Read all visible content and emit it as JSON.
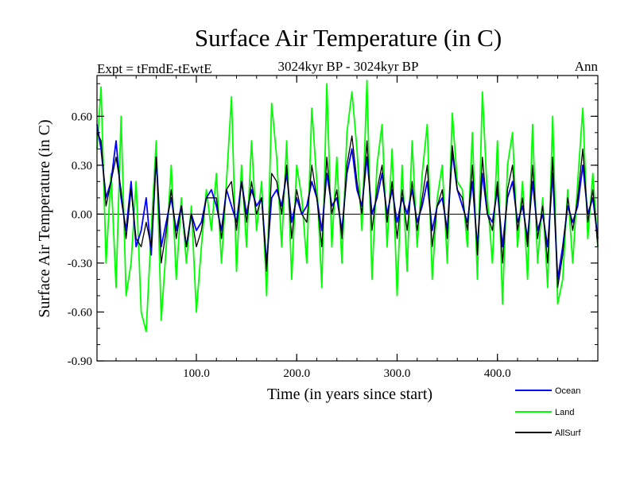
{
  "chart_data": {
    "type": "line",
    "title": "Surface Air Temperature (in C)",
    "subtitle": "3024kyr BP - 3024kyr BP",
    "left_label": "Expt = tFmdE-tEwtE",
    "right_label": "Ann",
    "xlabel": "Time (in years since start)",
    "ylabel": "Surface Air Temperature (in C)",
    "xlim": [
      1,
      500
    ],
    "ylim": [
      -0.9,
      0.85
    ],
    "x_ticks": [
      100,
      200,
      300,
      400
    ],
    "x_tick_labels": [
      "100.0",
      "200.0",
      "300.0",
      "400.0"
    ],
    "y_ticks": [
      -0.9,
      -0.6,
      -0.3,
      0.0,
      0.3,
      0.6
    ],
    "y_tick_labels": [
      "-0.90",
      "-0.60",
      "-0.30",
      "0.00",
      "0.30",
      "0.60"
    ],
    "zero_line": 0.0,
    "colors": {
      "ocean": "#0000ff",
      "land": "#00ff00",
      "allsurf": "#000000",
      "axis": "#000000"
    },
    "legend": {
      "placement": "bottom-right",
      "entries": [
        {
          "name": "Ocean",
          "color": "#0000ff"
        },
        {
          "name": "Land",
          "color": "#00ff00"
        },
        {
          "name": "AllSurf",
          "color": "#000000"
        }
      ]
    },
    "series": [
      {
        "name": "Land",
        "color": "#00ff00",
        "x": [
          1,
          5,
          10,
          15,
          20,
          25,
          30,
          35,
          40,
          45,
          50,
          55,
          60,
          65,
          70,
          75,
          80,
          85,
          90,
          95,
          100,
          105,
          110,
          115,
          120,
          125,
          130,
          135,
          140,
          145,
          150,
          155,
          160,
          165,
          170,
          175,
          180,
          185,
          190,
          195,
          200,
          205,
          210,
          215,
          220,
          225,
          230,
          235,
          240,
          245,
          250,
          255,
          260,
          265,
          270,
          275,
          280,
          285,
          290,
          295,
          300,
          305,
          310,
          315,
          320,
          325,
          330,
          335,
          340,
          345,
          350,
          355,
          360,
          365,
          370,
          375,
          380,
          385,
          390,
          395,
          400,
          405,
          410,
          415,
          420,
          425,
          430,
          435,
          440,
          445,
          450,
          455,
          460,
          465,
          470,
          475,
          480,
          485,
          490,
          495,
          500
        ],
        "values": [
          0.4,
          0.78,
          -0.3,
          0.25,
          -0.45,
          0.6,
          -0.5,
          -0.3,
          0.2,
          -0.6,
          -0.72,
          -0.1,
          0.45,
          -0.65,
          -0.2,
          0.3,
          -0.4,
          0.1,
          -0.3,
          0.05,
          -0.6,
          -0.2,
          0.15,
          -0.1,
          0.25,
          -0.3,
          0.2,
          0.72,
          -0.35,
          0.3,
          -0.2,
          0.45,
          -0.1,
          0.2,
          -0.5,
          0.68,
          0.35,
          -0.2,
          0.45,
          -0.4,
          0.3,
          0.1,
          -0.3,
          0.65,
          0.2,
          -0.45,
          0.8,
          -0.2,
          0.35,
          -0.3,
          0.5,
          0.75,
          0.4,
          -0.1,
          0.82,
          -0.4,
          0.3,
          0.55,
          -0.2,
          0.4,
          -0.5,
          0.3,
          -0.35,
          0.45,
          -0.2,
          0.25,
          0.55,
          -0.4,
          0.1,
          0.3,
          -0.3,
          0.62,
          0.2,
          0.15,
          -0.2,
          0.5,
          -0.4,
          0.75,
          0.1,
          -0.3,
          0.45,
          -0.55,
          0.3,
          0.5,
          -0.2,
          0.2,
          -0.4,
          0.55,
          -0.3,
          0.1,
          -0.45,
          0.6,
          -0.55,
          -0.4,
          0.15,
          -0.3,
          0.2,
          0.65,
          -0.15,
          0.25,
          -0.2
        ]
      },
      {
        "name": "Ocean",
        "color": "#0000ff",
        "x": [
          1,
          5,
          10,
          15,
          20,
          25,
          30,
          35,
          40,
          45,
          50,
          55,
          60,
          65,
          70,
          75,
          80,
          85,
          90,
          95,
          100,
          105,
          110,
          115,
          120,
          125,
          130,
          135,
          140,
          145,
          150,
          155,
          160,
          165,
          170,
          175,
          180,
          185,
          190,
          195,
          200,
          205,
          210,
          215,
          220,
          225,
          230,
          235,
          240,
          245,
          250,
          255,
          260,
          265,
          270,
          275,
          280,
          285,
          290,
          295,
          300,
          305,
          310,
          315,
          320,
          325,
          330,
          335,
          340,
          345,
          350,
          355,
          360,
          365,
          370,
          375,
          380,
          385,
          390,
          395,
          400,
          405,
          410,
          415,
          420,
          425,
          430,
          435,
          440,
          445,
          450,
          455,
          460,
          465,
          470,
          475,
          480,
          485,
          490,
          495,
          500
        ],
        "values": [
          0.55,
          0.4,
          0.1,
          0.2,
          0.45,
          0.1,
          -0.1,
          0.2,
          -0.2,
          -0.1,
          0.1,
          -0.25,
          0.35,
          -0.2,
          -0.05,
          0.1,
          -0.1,
          0.05,
          -0.2,
          0.0,
          -0.1,
          -0.05,
          0.1,
          0.15,
          0.05,
          -0.1,
          0.15,
          0.05,
          -0.05,
          0.2,
          0.0,
          0.15,
          0.05,
          0.1,
          -0.3,
          0.1,
          0.15,
          0.05,
          0.25,
          -0.05,
          0.1,
          0.0,
          0.05,
          0.2,
          0.1,
          -0.1,
          0.25,
          0.05,
          0.1,
          -0.1,
          0.25,
          0.4,
          0.15,
          0.05,
          0.35,
          0.0,
          0.1,
          0.25,
          0.0,
          0.15,
          -0.05,
          0.1,
          0.0,
          0.15,
          -0.05,
          0.05,
          0.2,
          -0.1,
          0.05,
          0.1,
          -0.1,
          0.38,
          0.15,
          0.05,
          -0.05,
          0.2,
          -0.2,
          0.25,
          0.0,
          -0.05,
          0.15,
          -0.2,
          0.1,
          0.2,
          -0.05,
          0.05,
          -0.15,
          0.2,
          -0.1,
          0.0,
          -0.2,
          0.25,
          -0.4,
          -0.2,
          0.05,
          -0.05,
          0.05,
          0.3,
          0.0,
          0.1,
          -0.15
        ]
      },
      {
        "name": "AllSurf",
        "color": "#000000",
        "x": [
          1,
          5,
          10,
          15,
          20,
          25,
          30,
          35,
          40,
          45,
          50,
          55,
          60,
          65,
          70,
          75,
          80,
          85,
          90,
          95,
          100,
          105,
          110,
          115,
          120,
          125,
          130,
          135,
          140,
          145,
          150,
          155,
          160,
          165,
          170,
          175,
          180,
          185,
          190,
          195,
          200,
          205,
          210,
          215,
          220,
          225,
          230,
          235,
          240,
          245,
          250,
          255,
          260,
          265,
          270,
          275,
          280,
          285,
          290,
          295,
          300,
          305,
          310,
          315,
          320,
          325,
          330,
          335,
          340,
          345,
          350,
          355,
          360,
          365,
          370,
          375,
          380,
          385,
          390,
          395,
          400,
          405,
          410,
          415,
          420,
          425,
          430,
          435,
          440,
          445,
          450,
          455,
          460,
          465,
          470,
          475,
          480,
          485,
          490,
          495,
          500
        ],
        "values": [
          0.5,
          0.45,
          0.05,
          0.2,
          0.35,
          0.15,
          -0.15,
          0.15,
          -0.15,
          -0.2,
          -0.05,
          -0.2,
          0.35,
          -0.3,
          -0.1,
          0.15,
          -0.15,
          0.05,
          -0.2,
          0.0,
          -0.2,
          -0.1,
          0.1,
          0.1,
          0.1,
          -0.15,
          0.15,
          0.2,
          -0.1,
          0.2,
          -0.05,
          0.2,
          0.0,
          0.1,
          -0.35,
          0.25,
          0.2,
          0.0,
          0.3,
          -0.15,
          0.15,
          0.0,
          -0.05,
          0.3,
          0.1,
          -0.2,
          0.35,
          0.0,
          0.15,
          -0.15,
          0.3,
          0.48,
          0.2,
          0.0,
          0.45,
          -0.1,
          0.15,
          0.3,
          -0.05,
          0.2,
          -0.15,
          0.15,
          -0.1,
          0.2,
          -0.1,
          0.1,
          0.3,
          -0.2,
          0.05,
          0.15,
          -0.15,
          0.42,
          0.15,
          0.1,
          -0.1,
          0.3,
          -0.25,
          0.35,
          0.0,
          -0.1,
          0.2,
          -0.3,
          0.15,
          0.3,
          -0.1,
          0.1,
          -0.2,
          0.3,
          -0.15,
          0.05,
          -0.3,
          0.35,
          -0.45,
          -0.25,
          0.1,
          -0.1,
          0.1,
          0.4,
          -0.05,
          0.15,
          -0.2
        ]
      }
    ]
  }
}
